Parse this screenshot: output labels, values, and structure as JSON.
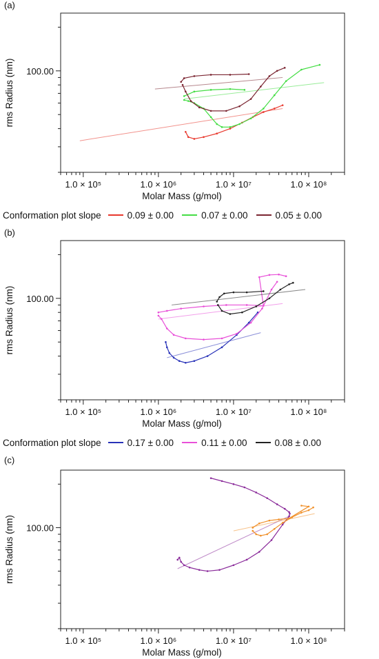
{
  "chart_data": [
    {
      "panel": "(a)",
      "type": "scatter",
      "xscale": "log",
      "yscale": "log",
      "xlabel": "Molar Mass (g/mol)",
      "ylabel": "rms Radius (nm)",
      "xlim": [
        50000,
        300000000
      ],
      "ylim": [
        20,
        250
      ],
      "xticks": [
        {
          "value": 100000,
          "label": "1.0 × 10⁵"
        },
        {
          "value": 1000000,
          "label": "1.0 × 10⁶"
        },
        {
          "value": 10000000,
          "label": "1.0 × 10⁷"
        },
        {
          "value": 100000000,
          "label": "1.0 × 10⁸"
        }
      ],
      "yticks": [
        {
          "value": 100,
          "label": "100.00"
        }
      ],
      "legend_title": "Conformation plot slope",
      "series": [
        {
          "name": "0.09 ± 0.00",
          "color": "#e8372c",
          "fit": [
            [
              90000,
              33
            ],
            [
              45000000
            ],
            [
              55
            ]
          ],
          "data": [
            [
              2300000,
              38
            ],
            [
              2500000,
              35
            ],
            [
              3000000,
              34
            ],
            [
              4000000,
              35
            ],
            [
              6000000,
              37
            ],
            [
              9000000,
              40
            ],
            [
              13000000,
              44
            ],
            [
              18000000,
              48
            ],
            [
              25000000,
              52
            ],
            [
              35000000,
              55
            ],
            [
              45000000,
              58
            ]
          ]
        },
        {
          "name": "0.07 ± 0.00",
          "color": "#44dd44",
          "fit": [
            [
              2200000,
              64
            ],
            [
              160000000,
              83
            ]
          ],
          "data": [
            [
              2200000,
              63
            ],
            [
              2500000,
              62
            ],
            [
              3000000,
              60
            ],
            [
              4000000,
              55
            ],
            [
              5000000,
              48
            ],
            [
              6000000,
              43
            ],
            [
              7000000,
              41
            ],
            [
              9000000,
              41
            ],
            [
              12000000,
              43
            ],
            [
              17000000,
              47
            ],
            [
              25000000,
              55
            ],
            [
              35000000,
              68
            ],
            [
              50000000,
              85
            ],
            [
              80000000,
              102
            ],
            [
              140000000,
              110
            ],
            [
              2200000,
              67
            ],
            [
              3000000,
              72
            ],
            [
              5000000,
              74
            ],
            [
              9000000,
              75
            ],
            [
              14000000,
              74
            ]
          ]
        },
        {
          "name": "0.05 ± 0.00",
          "color": "#7a2430",
          "fit": [
            [
              900000,
              75
            ],
            [
              45000000,
              90
            ]
          ],
          "data": [
            [
              2000000,
              84
            ],
            [
              2200000,
              89
            ],
            [
              3000000,
              92
            ],
            [
              5000000,
              94
            ],
            [
              9000000,
              94
            ],
            [
              16000000,
              95
            ],
            [
              2100000,
              80
            ],
            [
              2300000,
              72
            ],
            [
              2700000,
              62
            ],
            [
              3500000,
              56
            ],
            [
              5000000,
              53
            ],
            [
              8000000,
              53
            ],
            [
              12000000,
              57
            ],
            [
              17000000,
              64
            ],
            [
              23000000,
              78
            ],
            [
              30000000,
              92
            ],
            [
              38000000,
              100
            ],
            [
              48000000,
              105
            ]
          ]
        }
      ]
    },
    {
      "panel": "(b)",
      "type": "scatter",
      "xscale": "log",
      "yscale": "log",
      "xlabel": "Molar Mass (g/mol)",
      "ylabel": "rms Radius (nm)",
      "xlim": [
        50000,
        300000000
      ],
      "ylim": [
        20,
        250
      ],
      "xticks": [
        {
          "value": 100000,
          "label": "1.0 × 10⁵"
        },
        {
          "value": 1000000,
          "label": "1.0 × 10⁶"
        },
        {
          "value": 10000000,
          "label": "1.0 × 10⁷"
        },
        {
          "value": 100000000,
          "label": "1.0 × 10⁸"
        }
      ],
      "yticks": [
        {
          "value": 100,
          "label": "100.00"
        }
      ],
      "legend_title": "Conformation plot slope",
      "series": [
        {
          "name": "0.17 ± 0.00",
          "color": "#2832b8",
          "fit": [
            [
              1300000,
              39
            ],
            [
              23000000,
              58
            ]
          ],
          "data": [
            [
              1250000,
              50
            ],
            [
              1300000,
              46
            ],
            [
              1400000,
              42
            ],
            [
              1600000,
              39
            ],
            [
              1900000,
              37
            ],
            [
              2300000,
              36
            ],
            [
              3000000,
              37
            ],
            [
              4500000,
              40
            ],
            [
              7000000,
              46
            ],
            [
              11000000,
              56
            ],
            [
              16000000,
              68
            ],
            [
              21000000,
              80
            ]
          ]
        },
        {
          "name": "0.11 ± 0.00",
          "color": "#e84fd8",
          "fit": [
            [
              1000000,
              72
            ],
            [
              45000000,
              92
            ]
          ],
          "data": [
            [
              1000000,
              76
            ],
            [
              1100000,
              72
            ],
            [
              1300000,
              62
            ],
            [
              1600000,
              56
            ],
            [
              2300000,
              53
            ],
            [
              4000000,
              52
            ],
            [
              7000000,
              53
            ],
            [
              11000000,
              57
            ],
            [
              17000000,
              68
            ],
            [
              24000000,
              85
            ],
            [
              32000000,
              115
            ],
            [
              38000000,
              130
            ],
            [
              1000000,
              80
            ],
            [
              1300000,
              82
            ],
            [
              2000000,
              85
            ],
            [
              4000000,
              88
            ],
            [
              8000000,
              90
            ],
            [
              15000000,
              90
            ],
            [
              25000000,
              89
            ],
            [
              22000000,
              140
            ],
            [
              30000000,
              145
            ],
            [
              40000000,
              146
            ],
            [
              50000000,
              142
            ]
          ]
        },
        {
          "name": "0.08 ± 0.00",
          "color": "#222222",
          "fit": [
            [
              1500000,
              90
            ],
            [
              90000000,
              115
            ]
          ],
          "data": [
            [
              6000000,
              95
            ],
            [
              6500000,
              102
            ],
            [
              7500000,
              108
            ],
            [
              10000000,
              110
            ],
            [
              15000000,
              110
            ],
            [
              25000000,
              112
            ],
            [
              6200000,
              90
            ],
            [
              7000000,
              82
            ],
            [
              9000000,
              78
            ],
            [
              13000000,
              80
            ],
            [
              20000000,
              88
            ],
            [
              30000000,
              100
            ],
            [
              42000000,
              115
            ],
            [
              55000000,
              125
            ],
            [
              62000000,
              128
            ]
          ]
        }
      ]
    },
    {
      "panel": "(c)",
      "type": "scatter",
      "xscale": "log",
      "yscale": "log",
      "xlabel": "Molar Mass (g/mol)",
      "ylabel": "rms Radius (nm)",
      "xlim": [
        50000,
        300000000
      ],
      "ylim": [
        20,
        250
      ],
      "xticks": [
        {
          "value": 100000,
          "label": "1.0 × 10⁵"
        },
        {
          "value": 1000000,
          "label": "1.0 × 10⁶"
        },
        {
          "value": 10000000,
          "label": "1.0 × 10⁷"
        },
        {
          "value": 100000000,
          "label": "1.0 × 10⁸"
        }
      ],
      "yticks": [
        {
          "value": 100,
          "label": "100.00"
        }
      ],
      "series": [
        {
          "name": "",
          "color": "#8a2b9a",
          "fit": [
            [
              1800000,
              52
            ],
            [
              55000000,
              120
            ]
          ],
          "data": [
            [
              1800000,
              60
            ],
            [
              1900000,
              62
            ],
            [
              2000000,
              58
            ],
            [
              2200000,
              55
            ],
            [
              2600000,
              53
            ],
            [
              3500000,
              51
            ],
            [
              4500000,
              50
            ],
            [
              6500000,
              51
            ],
            [
              10000000,
              55
            ],
            [
              15000000,
              60
            ],
            [
              22000000,
              68
            ],
            [
              32000000,
              82
            ],
            [
              45000000,
              105
            ],
            [
              55000000,
              120
            ],
            [
              56000000,
              125
            ],
            [
              5000000,
              220
            ],
            [
              7000000,
              210
            ],
            [
              10000000,
              200
            ],
            [
              14000000,
              190
            ],
            [
              20000000,
              175
            ],
            [
              28000000,
              160
            ],
            [
              38000000,
              145
            ],
            [
              48000000,
              135
            ],
            [
              55000000,
              128
            ]
          ]
        },
        {
          "name": "",
          "color": "#f0902a",
          "fit": [
            [
              10000000,
              95
            ],
            [
              120000000,
              125
            ]
          ],
          "data": [
            [
              18000000,
              95
            ],
            [
              20000000,
              90
            ],
            [
              23000000,
              88
            ],
            [
              28000000,
              90
            ],
            [
              35000000,
              98
            ],
            [
              45000000,
              108
            ],
            [
              60000000,
              118
            ],
            [
              80000000,
              127
            ],
            [
              100000000,
              132
            ],
            [
              115000000,
              138
            ],
            [
              18000000,
              100
            ],
            [
              22000000,
              107
            ],
            [
              30000000,
              112
            ],
            [
              40000000,
              114
            ],
            [
              55000000,
              116
            ],
            [
              100000000,
              140
            ],
            [
              80000000,
              142
            ]
          ]
        }
      ]
    }
  ]
}
